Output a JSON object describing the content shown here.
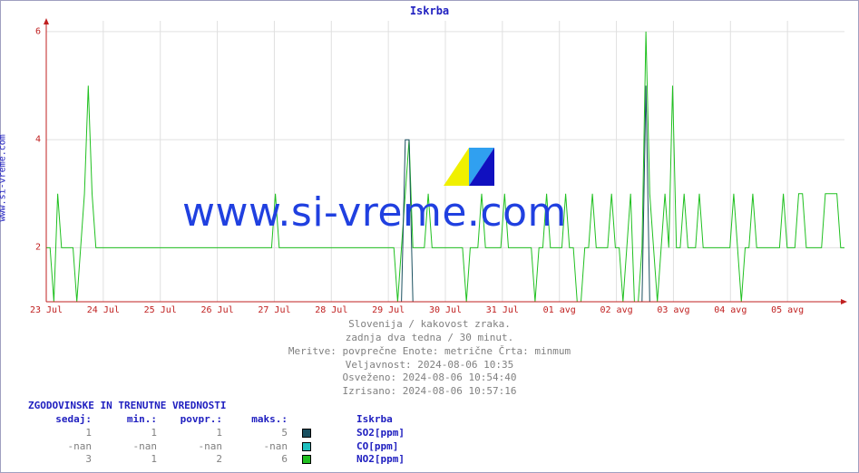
{
  "title": "Iskrba",
  "ylabel": "www.si-vreme.com",
  "watermark": "www.si-vreme.com",
  "chart": {
    "ylim": [
      1,
      6.2
    ],
    "yticks": [
      {
        "v": 2,
        "label": "2"
      },
      {
        "v": 4,
        "label": "4"
      },
      {
        "v": 6,
        "label": "6"
      }
    ],
    "x_days": 14,
    "xticks": [
      "23 Jul",
      "24 Jul",
      "25 Jul",
      "26 Jul",
      "27 Jul",
      "28 Jul",
      "29 Jul",
      "30 Jul",
      "31 Jul",
      "01 avg",
      "02 avg",
      "03 avg",
      "04 avg",
      "05 avg"
    ],
    "grid_color": "#e0e0e0",
    "axis_color": "#c02020",
    "so2_color": "#1a5060",
    "co_color": "#20c0c0",
    "no2_color": "#20c020",
    "no2": [
      2,
      2,
      1,
      3,
      2,
      2,
      2,
      2,
      1,
      2,
      3,
      5,
      3,
      2,
      2,
      2,
      2,
      2,
      2,
      2,
      2,
      2,
      2,
      2,
      2,
      2,
      2,
      2,
      2,
      2,
      2,
      2,
      2,
      2,
      2,
      2,
      2,
      2,
      2,
      2,
      2,
      2,
      2,
      2,
      2,
      2,
      2,
      2,
      2,
      2,
      2,
      2,
      2,
      2,
      2,
      2,
      2,
      2,
      2,
      2,
      3,
      2,
      2,
      2,
      2,
      2,
      2,
      2,
      2,
      2,
      2,
      2,
      2,
      2,
      2,
      2,
      2,
      2,
      2,
      2,
      2,
      2,
      2,
      2,
      2,
      2,
      2,
      2,
      2,
      2,
      2,
      2,
      1,
      2,
      3,
      4,
      2,
      2,
      2,
      2,
      3,
      2,
      2,
      2,
      2,
      2,
      2,
      2,
      2,
      2,
      1,
      2,
      2,
      2,
      3,
      2,
      2,
      2,
      2,
      2,
      3,
      2,
      2,
      2,
      2,
      2,
      2,
      2,
      1,
      2,
      2,
      3,
      2,
      2,
      2,
      2,
      3,
      2,
      2,
      1,
      1,
      2,
      2,
      3,
      2,
      2,
      2,
      2,
      3,
      2,
      2,
      1,
      2,
      3,
      1,
      1,
      2,
      6,
      3,
      2,
      1,
      2,
      3,
      2,
      5,
      2,
      2,
      3,
      2,
      2,
      2,
      3,
      2,
      2,
      2,
      2,
      2,
      2,
      2,
      2,
      3,
      2,
      1,
      2,
      2,
      3,
      2,
      2,
      2,
      2,
      2,
      2,
      2,
      3,
      2,
      2,
      2,
      3,
      3,
      2,
      2,
      2,
      2,
      2,
      3,
      3,
      3,
      3,
      2,
      2
    ],
    "so2": [
      1,
      1,
      1,
      1,
      1,
      1,
      1,
      1,
      1,
      1,
      1,
      1,
      1,
      1,
      1,
      1,
      1,
      1,
      1,
      1,
      1,
      1,
      1,
      1,
      1,
      1,
      1,
      1,
      1,
      1,
      1,
      1,
      1,
      1,
      1,
      1,
      1,
      1,
      1,
      1,
      1,
      1,
      1,
      1,
      1,
      1,
      1,
      1,
      1,
      1,
      1,
      1,
      1,
      1,
      1,
      1,
      1,
      1,
      1,
      1,
      1,
      1,
      1,
      1,
      1,
      1,
      1,
      1,
      1,
      1,
      1,
      1,
      1,
      1,
      1,
      1,
      1,
      1,
      1,
      1,
      1,
      1,
      1,
      1,
      1,
      1,
      1,
      1,
      1,
      1,
      1,
      1,
      1,
      1,
      4,
      4,
      1,
      1,
      1,
      1,
      1,
      1,
      1,
      1,
      1,
      1,
      1,
      1,
      1,
      1,
      1,
      1,
      1,
      1,
      1,
      1,
      1,
      1,
      1,
      1,
      1,
      1,
      1,
      1,
      1,
      1,
      1,
      1,
      1,
      1,
      1,
      1,
      1,
      1,
      1,
      1,
      1,
      1,
      1,
      1,
      1,
      1,
      1,
      1,
      1,
      1,
      1,
      1,
      1,
      1,
      1,
      1,
      1,
      1,
      1,
      1,
      1,
      5,
      1,
      1,
      1,
      1,
      1,
      1,
      1,
      1,
      1,
      1,
      1,
      1,
      1,
      1,
      1,
      1,
      1,
      1,
      1,
      1,
      1,
      1,
      1,
      1,
      1,
      1,
      1,
      1,
      1,
      1,
      1,
      1,
      1,
      1,
      1,
      1,
      1,
      1,
      1,
      1,
      1,
      1,
      1,
      1,
      1,
      1,
      1,
      1,
      1,
      1,
      1,
      1
    ]
  },
  "caption": {
    "l1": "Slovenija / kakovost zraka.",
    "l2": "zadnja dva tedna / 30 minut.",
    "l3": "Meritve: povprečne  Enote: metrične  Črta: minmum",
    "l4": "Veljavnost: 2024-08-06 10:35",
    "l5": "Osveženo: 2024-08-06 10:54:40",
    "l6": "Izrisano: 2024-08-06 10:57:16"
  },
  "stats": {
    "title": "ZGODOVINSKE IN TRENUTNE VREDNOSTI",
    "columns": [
      "sedaj:",
      "min.:",
      "povpr.:",
      "maks.:"
    ],
    "group_label": "Iskrba",
    "rows": [
      {
        "vals": [
          "1",
          "1",
          "1",
          "5"
        ],
        "color": "#1a5060",
        "label": "SO2[ppm]"
      },
      {
        "vals": [
          "-nan",
          "-nan",
          "-nan",
          "-nan"
        ],
        "color": "#20c0c0",
        "label": "CO[ppm]"
      },
      {
        "vals": [
          "3",
          "1",
          "2",
          "6"
        ],
        "color": "#20c020",
        "label": "NO2[ppm]"
      }
    ]
  }
}
